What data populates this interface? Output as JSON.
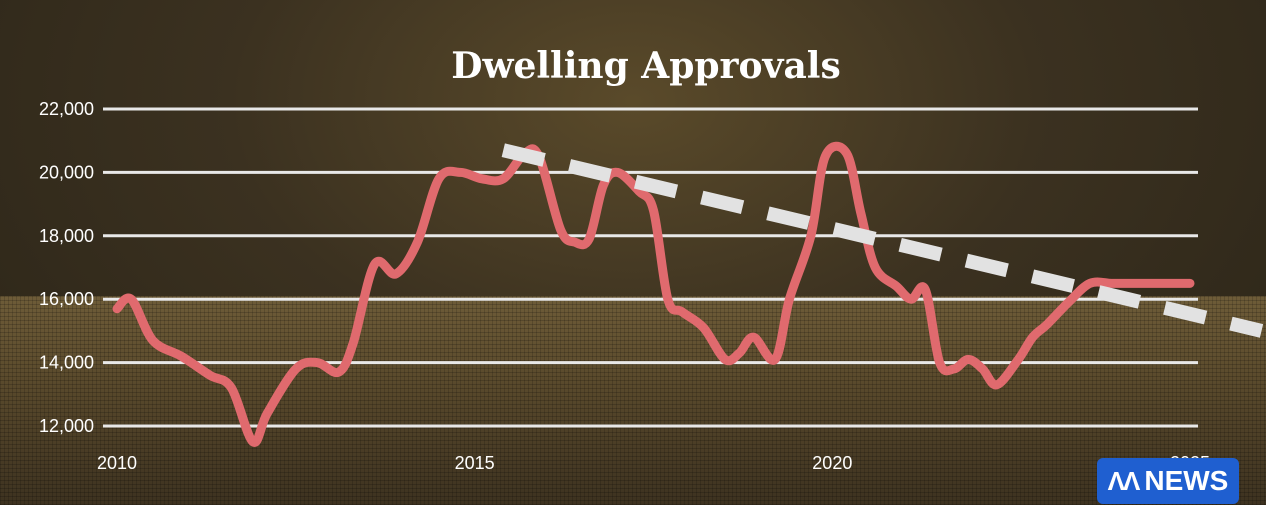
{
  "chart_data": {
    "type": "line",
    "title": "Dwelling Approvals",
    "xlabel": "",
    "ylabel": "",
    "xlim": [
      2010,
      2025
    ],
    "ylim": [
      12000,
      22000
    ],
    "x_ticks": [
      2010,
      2015,
      2020,
      2025
    ],
    "x_tick_labels": [
      "2010",
      "2015",
      "2020",
      "2025"
    ],
    "y_ticks": [
      12000,
      14000,
      16000,
      18000,
      20000,
      22000
    ],
    "y_tick_labels": [
      "12,000",
      "14,000",
      "16,000",
      "18,000",
      "20,000",
      "22,000"
    ],
    "grid": true,
    "series": [
      {
        "color": "#e06a6e",
        "x": [
          2010.0,
          2010.2,
          2010.5,
          2010.9,
          2011.3,
          2011.6,
          2011.9,
          2012.1,
          2012.5,
          2012.8,
          2013.1,
          2013.3,
          2013.6,
          2013.9,
          2014.2,
          2014.5,
          2014.8,
          2015.1,
          2015.4,
          2015.7,
          2015.9,
          2016.2,
          2016.4,
          2016.6,
          2016.8,
          2017.0,
          2017.3,
          2017.5,
          2017.7,
          2017.9,
          2018.2,
          2018.5,
          2018.7,
          2018.9,
          2019.2,
          2019.4,
          2019.7,
          2019.9,
          2020.2,
          2020.4,
          2020.6,
          2020.9,
          2021.1,
          2021.3,
          2021.5,
          2021.7,
          2021.9,
          2022.1,
          2022.3,
          2022.6,
          2022.8,
          2023.0,
          2023.3,
          2023.6,
          2023.9,
          2024.1,
          2024.4,
          2024.8,
          2025.0
        ],
        "y": [
          15700,
          16000,
          14700,
          14200,
          13600,
          13200,
          11500,
          12400,
          13800,
          14000,
          13700,
          14600,
          17100,
          16800,
          17800,
          19800,
          20000,
          19800,
          19800,
          20600,
          20500,
          18200,
          17800,
          17900,
          19600,
          20000,
          19400,
          18800,
          16000,
          15600,
          15100,
          14100,
          14300,
          14800,
          14100,
          16000,
          18000,
          20500,
          20600,
          18700,
          17000,
          16400,
          16000,
          16300,
          14000,
          13800,
          14100,
          13800,
          13300,
          14100,
          14800,
          15200,
          15900,
          16500,
          16500,
          16500,
          16500,
          16500,
          16500
        ]
      },
      {
        "name": "",
        "color": "#e2e2e2",
        "dashed": true,
        "x": [
          2015.4,
          2026.0
        ],
        "y": [
          20700,
          15000
        ]
      }
    ]
  },
  "logo": {
    "mark": "ɅɅ",
    "text": "NEWS"
  }
}
